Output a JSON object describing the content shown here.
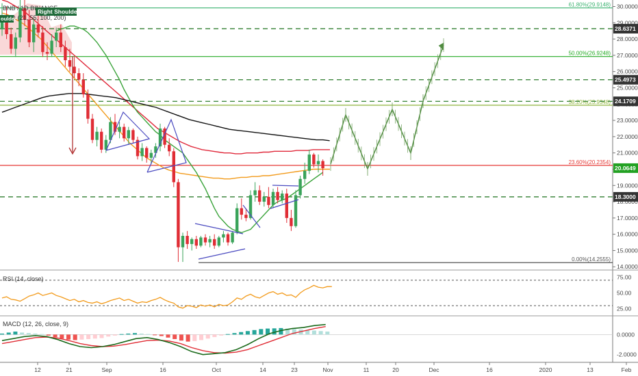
{
  "header": {
    "symbol": "BNB",
    "exchange": "BINANCE",
    "interval": "1D",
    "sma_inputs": "SMA (21, 55, 100, 200)",
    "pattern_label": "Right Shoulder",
    "left_tag": "oulder"
  },
  "chart_data": [
    {
      "type": "line",
      "title": "",
      "kind": "candlestick",
      "x_ticks": [
        "12",
        "21",
        "Sep",
        "16",
        "Oct",
        "14",
        "23",
        "Nov",
        "11",
        "20",
        "Dec",
        "16",
        "2020",
        "13",
        "Feb"
      ],
      "y_ticks": [
        "30.0000",
        "29.0000",
        "28.0000",
        "27.0000",
        "26.0000",
        "25.0000",
        "24.0000",
        "23.0000",
        "22.0000",
        "21.0000",
        "20.0000",
        "19.0000",
        "18.0000",
        "17.0000",
        "16.0000",
        "15.0000",
        "14.0000"
      ],
      "y_min": 13.8,
      "y_max": 30.4,
      "price_tags": [
        {
          "label": "28.6371",
          "color": "#333333"
        },
        {
          "label": "25.4973",
          "color": "#333333"
        },
        {
          "label": "24.1709",
          "color": "#333333"
        },
        {
          "label": "20.0649",
          "color": "#22a122"
        },
        {
          "label": "18.3000",
          "color": "#333333"
        }
      ],
      "fib_levels": [
        {
          "label": "61.80%(29.9148)",
          "value": 29.9148,
          "color": "#3cb371"
        },
        {
          "label": "50.00%(26.9248)",
          "value": 26.9248,
          "color": "#22aa22"
        },
        {
          "label": "38.20%(23.9348)",
          "value": 23.9348,
          "color": "#8db33a"
        },
        {
          "label": "23.60%(20.2354)",
          "value": 20.2354,
          "color": "#e53935"
        },
        {
          "label": "0.00%(14.2555)",
          "value": 14.2555,
          "color": "#555555"
        }
      ],
      "dashed_levels": [
        28.6371,
        25.4973,
        24.1709,
        18.3
      ],
      "candles": [
        {
          "o": 28.6,
          "h": 30.2,
          "l": 28.2,
          "c": 29.4
        },
        {
          "o": 29.4,
          "h": 30.0,
          "l": 28.0,
          "c": 28.3
        },
        {
          "o": 28.3,
          "h": 28.7,
          "l": 27.1,
          "c": 27.4
        },
        {
          "o": 27.4,
          "h": 28.4,
          "l": 26.9,
          "c": 28.1
        },
        {
          "o": 28.1,
          "h": 30.5,
          "l": 27.8,
          "c": 29.9
        },
        {
          "o": 29.9,
          "h": 30.4,
          "l": 28.8,
          "c": 29.2
        },
        {
          "o": 29.2,
          "h": 29.8,
          "l": 27.5,
          "c": 27.8
        },
        {
          "o": 27.8,
          "h": 29.3,
          "l": 27.2,
          "c": 28.9
        },
        {
          "o": 28.9,
          "h": 29.6,
          "l": 28.1,
          "c": 28.4
        },
        {
          "o": 28.4,
          "h": 28.8,
          "l": 26.9,
          "c": 27.2
        },
        {
          "o": 27.2,
          "h": 27.8,
          "l": 26.7,
          "c": 27.1
        },
        {
          "o": 27.1,
          "h": 28.3,
          "l": 26.9,
          "c": 27.9
        },
        {
          "o": 27.9,
          "h": 28.7,
          "l": 27.5,
          "c": 28.4
        },
        {
          "o": 28.4,
          "h": 28.9,
          "l": 27.2,
          "c": 27.5
        },
        {
          "o": 27.5,
          "h": 27.9,
          "l": 26.3,
          "c": 26.7
        },
        {
          "o": 26.7,
          "h": 27.4,
          "l": 26.0,
          "c": 26.3
        },
        {
          "o": 26.3,
          "h": 26.9,
          "l": 25.6,
          "c": 25.9
        },
        {
          "o": 25.9,
          "h": 26.2,
          "l": 25.1,
          "c": 25.5
        },
        {
          "o": 25.5,
          "h": 25.9,
          "l": 24.4,
          "c": 24.6
        },
        {
          "o": 24.6,
          "h": 24.9,
          "l": 22.8,
          "c": 23.1
        },
        {
          "o": 23.1,
          "h": 23.4,
          "l": 21.6,
          "c": 21.8
        },
        {
          "o": 21.8,
          "h": 22.6,
          "l": 21.4,
          "c": 22.3
        },
        {
          "o": 22.3,
          "h": 22.5,
          "l": 21.0,
          "c": 21.2
        },
        {
          "o": 21.2,
          "h": 22.1,
          "l": 21.0,
          "c": 21.8
        },
        {
          "o": 21.8,
          "h": 23.2,
          "l": 21.6,
          "c": 22.9
        },
        {
          "o": 22.9,
          "h": 23.4,
          "l": 22.1,
          "c": 22.3
        },
        {
          "o": 22.3,
          "h": 22.9,
          "l": 21.9,
          "c": 22.6
        },
        {
          "o": 22.6,
          "h": 22.8,
          "l": 21.7,
          "c": 21.9
        },
        {
          "o": 21.9,
          "h": 22.6,
          "l": 21.5,
          "c": 22.4
        },
        {
          "o": 22.4,
          "h": 22.5,
          "l": 21.6,
          "c": 21.8
        },
        {
          "o": 21.8,
          "h": 22.0,
          "l": 20.6,
          "c": 20.8
        },
        {
          "o": 20.8,
          "h": 21.6,
          "l": 20.5,
          "c": 21.3
        },
        {
          "o": 21.3,
          "h": 21.4,
          "l": 20.4,
          "c": 20.7
        },
        {
          "o": 20.7,
          "h": 21.2,
          "l": 20.3,
          "c": 21.0
        },
        {
          "o": 21.0,
          "h": 21.6,
          "l": 20.7,
          "c": 21.4
        },
        {
          "o": 21.4,
          "h": 22.8,
          "l": 21.1,
          "c": 22.5
        },
        {
          "o": 22.5,
          "h": 22.6,
          "l": 21.3,
          "c": 21.5
        },
        {
          "o": 21.5,
          "h": 21.9,
          "l": 20.8,
          "c": 21.1
        },
        {
          "o": 21.1,
          "h": 21.3,
          "l": 18.9,
          "c": 19.2
        },
        {
          "o": 19.2,
          "h": 19.4,
          "l": 14.3,
          "c": 15.2
        },
        {
          "o": 15.2,
          "h": 16.1,
          "l": 14.3,
          "c": 15.9
        },
        {
          "o": 15.9,
          "h": 16.2,
          "l": 15.1,
          "c": 15.4
        },
        {
          "o": 15.4,
          "h": 15.8,
          "l": 15.0,
          "c": 15.7
        },
        {
          "o": 15.7,
          "h": 15.9,
          "l": 15.1,
          "c": 15.3
        },
        {
          "o": 15.3,
          "h": 15.9,
          "l": 15.2,
          "c": 15.8
        },
        {
          "o": 15.8,
          "h": 16.0,
          "l": 15.3,
          "c": 15.5
        },
        {
          "o": 15.5,
          "h": 15.9,
          "l": 15.2,
          "c": 15.7
        },
        {
          "o": 15.7,
          "h": 16.0,
          "l": 15.1,
          "c": 15.3
        },
        {
          "o": 15.3,
          "h": 15.9,
          "l": 15.2,
          "c": 15.8
        },
        {
          "o": 15.8,
          "h": 16.2,
          "l": 15.5,
          "c": 16.0
        },
        {
          "o": 16.0,
          "h": 16.1,
          "l": 15.3,
          "c": 15.5
        },
        {
          "o": 15.5,
          "h": 16.2,
          "l": 15.4,
          "c": 16.1
        },
        {
          "o": 16.1,
          "h": 17.9,
          "l": 16.0,
          "c": 17.6
        },
        {
          "o": 17.6,
          "h": 18.2,
          "l": 16.9,
          "c": 17.2
        },
        {
          "o": 17.2,
          "h": 17.6,
          "l": 16.8,
          "c": 17.0
        },
        {
          "o": 17.0,
          "h": 18.7,
          "l": 16.9,
          "c": 18.4
        },
        {
          "o": 18.4,
          "h": 19.2,
          "l": 18.0,
          "c": 18.7
        },
        {
          "o": 18.7,
          "h": 19.0,
          "l": 17.8,
          "c": 18.0
        },
        {
          "o": 18.0,
          "h": 18.6,
          "l": 17.7,
          "c": 18.3
        },
        {
          "o": 18.3,
          "h": 18.9,
          "l": 17.6,
          "c": 17.8
        },
        {
          "o": 17.8,
          "h": 18.8,
          "l": 17.6,
          "c": 18.6
        },
        {
          "o": 18.6,
          "h": 18.9,
          "l": 17.9,
          "c": 18.1
        },
        {
          "o": 18.1,
          "h": 18.7,
          "l": 17.9,
          "c": 18.5
        },
        {
          "o": 18.5,
          "h": 18.8,
          "l": 16.7,
          "c": 17.0
        },
        {
          "o": 17.0,
          "h": 17.5,
          "l": 16.2,
          "c": 16.5
        },
        {
          "o": 16.5,
          "h": 18.7,
          "l": 16.4,
          "c": 18.4
        },
        {
          "o": 18.4,
          "h": 19.6,
          "l": 18.2,
          "c": 19.4
        },
        {
          "o": 19.4,
          "h": 20.4,
          "l": 19.1,
          "c": 19.9
        },
        {
          "o": 19.9,
          "h": 21.2,
          "l": 19.7,
          "c": 20.9
        },
        {
          "o": 20.9,
          "h": 21.0,
          "l": 20.1,
          "c": 20.3
        },
        {
          "o": 20.3,
          "h": 20.9,
          "l": 19.8,
          "c": 20.5
        },
        {
          "o": 20.5,
          "h": 20.6,
          "l": 19.6,
          "c": 20.06
        }
      ],
      "sma21": [
        28.5,
        28.6,
        28.7,
        28.8,
        28.8,
        28.7,
        28.6,
        28.4,
        28.1,
        27.8,
        27.4,
        27.0,
        26.5,
        26.0,
        25.5,
        24.9,
        24.4,
        23.9,
        23.5,
        23.2,
        22.9,
        22.6,
        22.3,
        22.1,
        21.8,
        21.6,
        21.4,
        21.2,
        21.0,
        20.6,
        20.2,
        19.8,
        19.3,
        18.8,
        18.2,
        17.6,
        17.1,
        16.8,
        16.5,
        16.3,
        16.2,
        16.1,
        16.2,
        16.3,
        16.6,
        16.9,
        17.2,
        17.5,
        17.8,
        18.0,
        18.1,
        18.2,
        18.4,
        18.6,
        18.8,
        19.0,
        19.2,
        19.4,
        19.6,
        19.8
      ],
      "sma55": [
        29.6,
        29.5,
        29.3,
        29.1,
        28.9,
        28.6,
        28.3,
        28.0,
        27.6,
        27.2,
        26.8,
        26.4,
        26.0,
        25.6,
        25.2,
        24.8,
        24.4,
        24.0,
        23.6,
        23.2,
        22.8,
        22.4,
        22.0,
        21.6,
        21.3,
        21.0,
        20.7,
        20.5,
        20.3,
        20.1,
        19.95,
        19.85,
        19.75,
        19.7,
        19.65,
        19.6,
        19.55,
        19.5,
        19.45,
        19.45,
        19.4,
        19.4,
        19.45,
        19.5,
        19.5,
        19.55,
        19.55,
        19.6,
        19.6,
        19.65,
        19.7,
        19.75,
        19.8,
        19.85,
        19.9,
        19.95,
        20.0,
        20.0,
        20.0,
        20.0
      ],
      "sma100": [
        30.4,
        30.3,
        30.1,
        29.9,
        29.7,
        29.4,
        29.1,
        28.8,
        28.5,
        28.2,
        27.9,
        27.6,
        27.3,
        27.0,
        26.7,
        26.4,
        26.1,
        25.8,
        25.5,
        25.2,
        24.9,
        24.6,
        24.3,
        24.0,
        23.7,
        23.4,
        23.1,
        22.8,
        22.5,
        22.3,
        22.1,
        21.9,
        21.7,
        21.55,
        21.4,
        21.3,
        21.2,
        21.15,
        21.1,
        21.05,
        21.0,
        21.0,
        20.95,
        20.95,
        21.0,
        21.0,
        21.0,
        21.05,
        21.05,
        21.1,
        21.1,
        21.1,
        21.1,
        21.15,
        21.15,
        21.15,
        21.2,
        21.2,
        21.2,
        21.2
      ],
      "sma200": [
        23.5,
        23.65,
        23.8,
        23.95,
        24.1,
        24.25,
        24.4,
        24.5,
        24.55,
        24.6,
        24.65,
        24.65,
        24.65,
        24.6,
        24.55,
        24.5,
        24.45,
        24.4,
        24.3,
        24.2,
        24.1,
        24.0,
        23.9,
        23.8,
        23.65,
        23.5,
        23.35,
        23.2,
        23.05,
        22.95,
        22.85,
        22.75,
        22.65,
        22.55,
        22.45,
        22.4,
        22.35,
        22.3,
        22.25,
        22.2,
        22.15,
        22.1,
        22.05,
        22.0,
        21.95,
        21.9,
        21.85,
        21.8,
        21.8,
        21.75
      ],
      "projection": [
        20.06,
        23.3,
        20.1,
        19.8,
        23.5,
        21.0,
        26.6,
        27.4
      ],
      "head_shoulders_shade": {
        "note": "Right Shoulder pattern area"
      }
    },
    {
      "type": "line",
      "kind": "rsi",
      "title": "RSI (14, close)",
      "y_ticks": [
        "75.00",
        "50.00",
        "25.00"
      ],
      "levels": [
        70,
        30
      ],
      "values": [
        42,
        44,
        40,
        39,
        37,
        41,
        45,
        47,
        50,
        46,
        48,
        50,
        46,
        44,
        41,
        38,
        40,
        36,
        38,
        35,
        34,
        36,
        33,
        35,
        38,
        40,
        42,
        38,
        40,
        37,
        34,
        36,
        35,
        38,
        40,
        43,
        39,
        36,
        34,
        28,
        26,
        30,
        29,
        27,
        31,
        29,
        31,
        28,
        32,
        30,
        31,
        36,
        42,
        40,
        45,
        48,
        44,
        42,
        46,
        50,
        52,
        48,
        50,
        46,
        47,
        43,
        50,
        55,
        58,
        62,
        59,
        58,
        60,
        60
      ]
    },
    {
      "type": "bar",
      "kind": "macd",
      "title": "MACD (12, 26, close, 9)",
      "y_ticks": [
        "0.0000",
        "-2.0000"
      ],
      "histogram": [
        0.1,
        0.2,
        0.3,
        0.2,
        0.15,
        0.1,
        0.05,
        -0.1,
        -0.25,
        -0.4,
        -0.5,
        -0.55,
        -0.5,
        -0.45,
        -0.4,
        -0.35,
        -0.2,
        -0.1,
        0.05,
        0.1,
        0.15,
        0.1,
        0.05,
        -0.05,
        -0.15,
        -0.3,
        -0.45,
        -0.6,
        -0.7,
        -0.65,
        -0.55,
        -0.4,
        -0.25,
        -0.1,
        0.05,
        0.15,
        0.25,
        0.35,
        0.45,
        0.55,
        0.6,
        0.62,
        0.65,
        0.6,
        0.55,
        0.5,
        0.45,
        0.4,
        0.35,
        0.3
      ],
      "macd": [
        -0.6,
        -0.4,
        -0.2,
        -0.1,
        -0.2,
        -0.5,
        -0.9,
        -1.2,
        -1.3,
        -1.2,
        -1.0,
        -0.7,
        -0.4,
        -0.3,
        -0.5,
        -0.8,
        -1.2,
        -1.7,
        -2.0,
        -1.9,
        -1.8,
        -1.5,
        -1.0,
        -0.4,
        0.1,
        0.4,
        0.6,
        0.7,
        0.9,
        1.0
      ],
      "signal": [
        -0.9,
        -0.7,
        -0.5,
        -0.3,
        -0.25,
        -0.35,
        -0.6,
        -0.9,
        -1.1,
        -1.2,
        -1.15,
        -1.0,
        -0.8,
        -0.6,
        -0.55,
        -0.65,
        -0.9,
        -1.3,
        -1.6,
        -1.8,
        -1.85,
        -1.75,
        -1.5,
        -1.1,
        -0.7,
        -0.3,
        0.1,
        0.35,
        0.6,
        0.8
      ]
    }
  ]
}
